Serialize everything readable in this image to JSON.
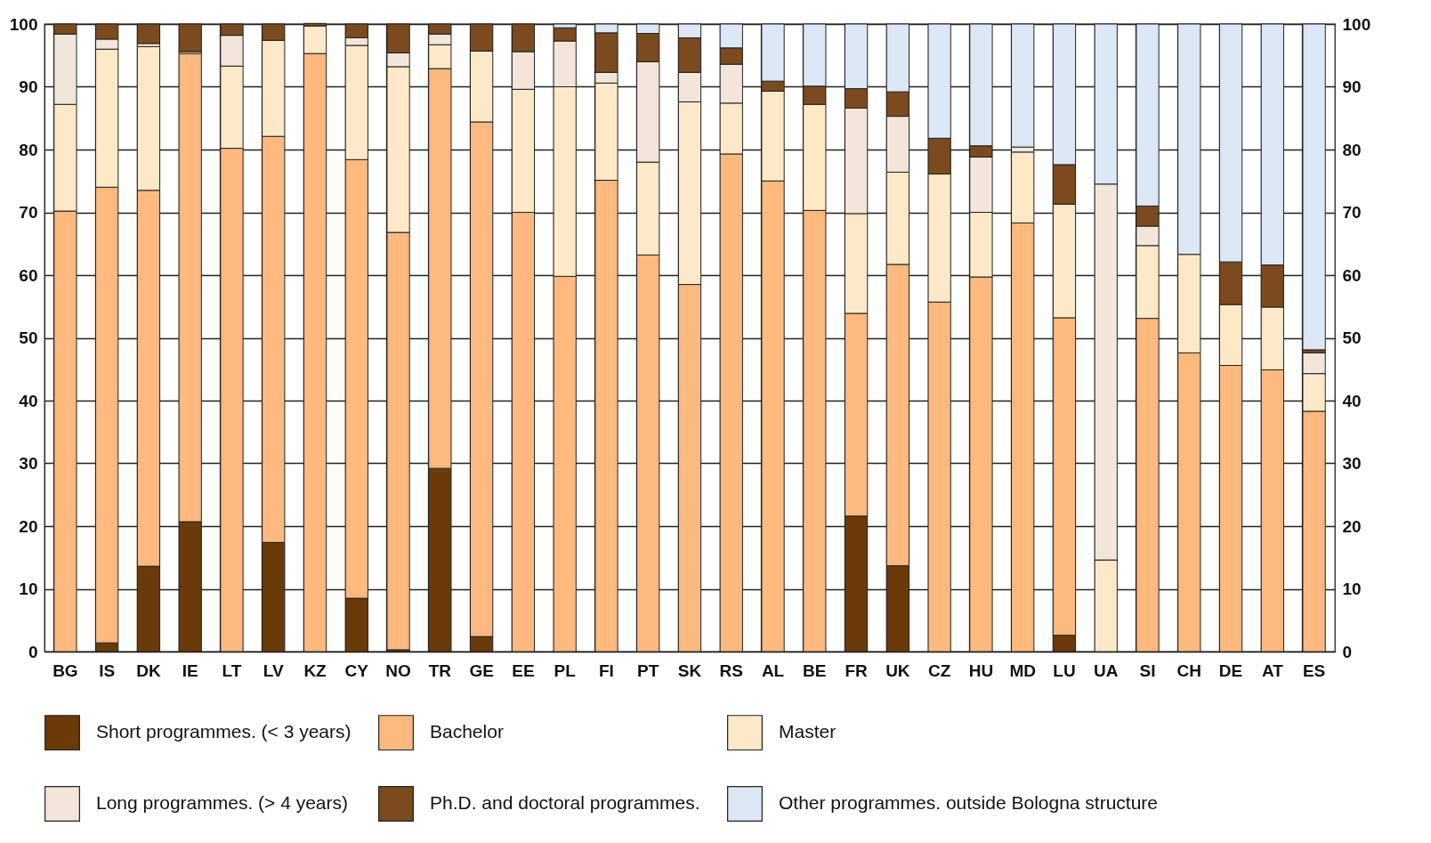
{
  "chart_data": {
    "type": "bar",
    "stacked": true,
    "grid": true,
    "legend": "bottom",
    "categories": [
      "BG",
      "IS",
      "DK",
      "IE",
      "LT",
      "LV",
      "KZ",
      "CY",
      "NO",
      "TR",
      "GE",
      "EE",
      "PL",
      "FI",
      "PT",
      "SK",
      "RS",
      "AL",
      "BE",
      "FR",
      "UK",
      "CZ",
      "HU",
      "MD",
      "LU",
      "UA",
      "SI",
      "CH",
      "DE",
      "AT",
      "ES"
    ],
    "series": [
      {
        "name": "Short programmes. (< 3 years)",
        "color": "#6b3a0a",
        "values": [
          0,
          1.4,
          13.6,
          20.7,
          0,
          17.4,
          0,
          8.5,
          0.3,
          29.2,
          2.4,
          0,
          0,
          0,
          0,
          0,
          0,
          0,
          0,
          21.6,
          13.7,
          0,
          0,
          0,
          2.6,
          0,
          0,
          0,
          0,
          0,
          0
        ]
      },
      {
        "name": "Bachelor",
        "color": "#fdb97e",
        "values": [
          70.2,
          72.6,
          59.9,
          74.6,
          80.2,
          64.7,
          95.3,
          69.9,
          66.5,
          63.7,
          82.0,
          70.0,
          59.8,
          75.1,
          63.2,
          58.5,
          79.3,
          75.0,
          70.3,
          32.3,
          48.0,
          55.7,
          59.7,
          68.3,
          50.6,
          0,
          53.1,
          47.6,
          45.6,
          44.9,
          38.3
        ]
      },
      {
        "name": "Master",
        "color": "#fde9c8",
        "values": [
          17.0,
          22.0,
          22.9,
          0.3,
          13.1,
          15.3,
          4.4,
          18.2,
          26.4,
          3.8,
          11.3,
          19.6,
          30.2,
          15.5,
          14.8,
          29.1,
          8.1,
          14.3,
          16.9,
          15.9,
          14.7,
          20.4,
          10.3,
          11.3,
          18.1,
          14.6,
          11.6,
          15.7,
          9.7,
          10.0,
          6.0
        ]
      },
      {
        "name": "Long programmes. (> 4 years)",
        "color": "#f2e6da",
        "values": [
          11.2,
          1.6,
          0.5,
          0,
          4.9,
          0,
          0,
          1.2,
          2.2,
          1.7,
          0,
          6.0,
          7.3,
          1.7,
          16.0,
          4.7,
          6.2,
          0,
          0,
          16.8,
          8.9,
          0,
          8.8,
          0.8,
          0,
          59.9,
          3.1,
          0,
          0,
          0,
          3.3
        ]
      },
      {
        "name": "Ph.D. and doctoral programmes.",
        "color": "#7b4a1e",
        "values": [
          1.6,
          2.4,
          3.1,
          4.4,
          1.8,
          2.6,
          0.4,
          2.2,
          4.6,
          1.6,
          4.3,
          4.4,
          2.1,
          6.3,
          4.5,
          5.5,
          2.6,
          1.6,
          2.9,
          3.1,
          3.9,
          5.7,
          1.8,
          0,
          6.3,
          0,
          3.2,
          0,
          6.8,
          6.7,
          0.5
        ]
      },
      {
        "name": "Other  programmes. outside Bologna structure",
        "color": "#dce8f5",
        "values": [
          0,
          0,
          0,
          0,
          0,
          0,
          0,
          0,
          0,
          0,
          0,
          0,
          0.6,
          1.4,
          1.5,
          2.2,
          3.8,
          9.1,
          9.9,
          10.3,
          10.8,
          18.2,
          19.4,
          19.6,
          22.4,
          25.5,
          29.0,
          36.7,
          37.9,
          38.4,
          51.9
        ]
      }
    ],
    "ylim": [
      0,
      100
    ],
    "yticks": [
      0,
      10,
      20,
      30,
      40,
      50,
      60,
      70,
      80,
      90,
      100
    ],
    "y2lim": [
      0,
      100
    ],
    "y2ticks": [
      0,
      10,
      20,
      30,
      40,
      50,
      60,
      70,
      80,
      90,
      100
    ]
  }
}
